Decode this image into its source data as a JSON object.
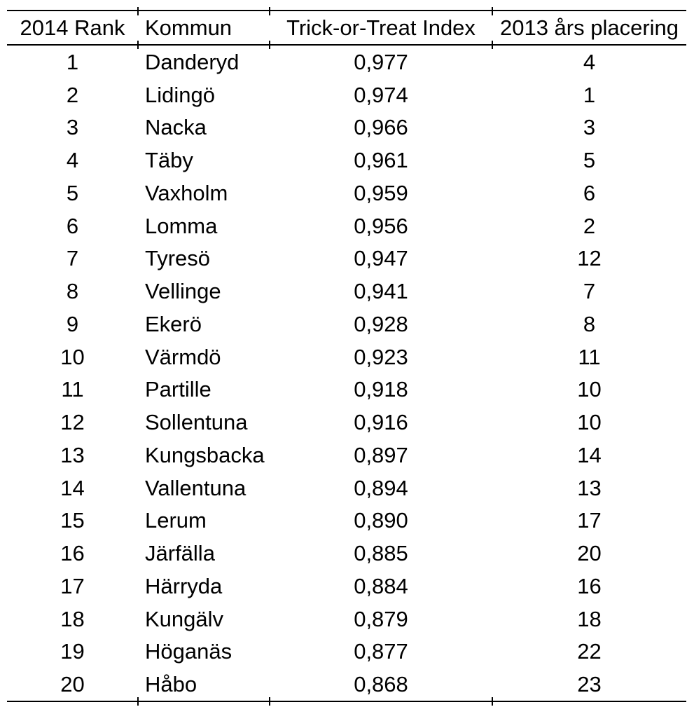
{
  "colors": {
    "background": "#ffffff",
    "text": "#000000",
    "border": "#000000"
  },
  "table": {
    "headers": {
      "rank": "2014 Rank",
      "kommun": "Kommun",
      "index": "Trick-or-Treat Index",
      "placering_2013": "2013 års placering"
    },
    "rows": [
      {
        "rank": "1",
        "kommun": "Danderyd",
        "index": "0,977",
        "placering_2013": "4"
      },
      {
        "rank": "2",
        "kommun": "Lidingö",
        "index": "0,974",
        "placering_2013": "1"
      },
      {
        "rank": "3",
        "kommun": "Nacka",
        "index": "0,966",
        "placering_2013": "3"
      },
      {
        "rank": "4",
        "kommun": "Täby",
        "index": "0,961",
        "placering_2013": "5"
      },
      {
        "rank": "5",
        "kommun": "Vaxholm",
        "index": "0,959",
        "placering_2013": "6"
      },
      {
        "rank": "6",
        "kommun": "Lomma",
        "index": "0,956",
        "placering_2013": "2"
      },
      {
        "rank": "7",
        "kommun": "Tyresö",
        "index": "0,947",
        "placering_2013": "12"
      },
      {
        "rank": "8",
        "kommun": "Vellinge",
        "index": "0,941",
        "placering_2013": "7"
      },
      {
        "rank": "9",
        "kommun": "Ekerö",
        "index": "0,928",
        "placering_2013": "8"
      },
      {
        "rank": "10",
        "kommun": "Värmdö",
        "index": "0,923",
        "placering_2013": "11"
      },
      {
        "rank": "11",
        "kommun": "Partille",
        "index": "0,918",
        "placering_2013": "10"
      },
      {
        "rank": "12",
        "kommun": "Sollentuna",
        "index": "0,916",
        "placering_2013": "10"
      },
      {
        "rank": "13",
        "kommun": "Kungsbacka",
        "index": "0,897",
        "placering_2013": "14"
      },
      {
        "rank": "14",
        "kommun": "Vallentuna",
        "index": "0,894",
        "placering_2013": "13"
      },
      {
        "rank": "15",
        "kommun": "Lerum",
        "index": "0,890",
        "placering_2013": "17"
      },
      {
        "rank": "16",
        "kommun": "Järfälla",
        "index": "0,885",
        "placering_2013": "20"
      },
      {
        "rank": "17",
        "kommun": "Härryda",
        "index": "0,884",
        "placering_2013": "16"
      },
      {
        "rank": "18",
        "kommun": "Kungälv",
        "index": "0,879",
        "placering_2013": "18"
      },
      {
        "rank": "19",
        "kommun": "Höganäs",
        "index": "0,877",
        "placering_2013": "22"
      },
      {
        "rank": "20",
        "kommun": "Håbo",
        "index": "0,868",
        "placering_2013": "23"
      }
    ]
  }
}
